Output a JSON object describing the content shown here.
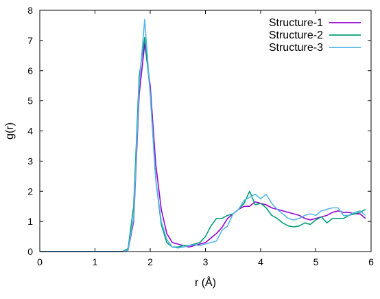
{
  "chart_data": {
    "type": "line",
    "title": "",
    "xlabel": "r (Å)",
    "ylabel": "g(r)",
    "xlim": [
      0,
      6
    ],
    "ylim": [
      0,
      8
    ],
    "xticks": [
      "0",
      "1",
      "2",
      "3",
      "4",
      "5",
      "6"
    ],
    "yticks": [
      "0",
      "1",
      "2",
      "3",
      "4",
      "5",
      "6",
      "7",
      "8"
    ],
    "grid": false,
    "legend_position": "top-right",
    "series": [
      {
        "name": "Structure-1",
        "color": "#9400d3",
        "points": [
          [
            0,
            0
          ],
          [
            1.5,
            0
          ],
          [
            1.6,
            0.05
          ],
          [
            1.7,
            1.0
          ],
          [
            1.8,
            5.2
          ],
          [
            1.9,
            6.9
          ],
          [
            2.0,
            5.5
          ],
          [
            2.1,
            2.9
          ],
          [
            2.2,
            1.4
          ],
          [
            2.3,
            0.6
          ],
          [
            2.4,
            0.3
          ],
          [
            2.5,
            0.25
          ],
          [
            2.6,
            0.2
          ],
          [
            2.7,
            0.15
          ],
          [
            2.8,
            0.2
          ],
          [
            2.9,
            0.25
          ],
          [
            3.0,
            0.3
          ],
          [
            3.1,
            0.45
          ],
          [
            3.2,
            0.6
          ],
          [
            3.3,
            0.8
          ],
          [
            3.4,
            1.1
          ],
          [
            3.5,
            1.25
          ],
          [
            3.6,
            1.4
          ],
          [
            3.7,
            1.5
          ],
          [
            3.8,
            1.5
          ],
          [
            3.9,
            1.65
          ],
          [
            4.0,
            1.6
          ],
          [
            4.1,
            1.55
          ],
          [
            4.2,
            1.45
          ],
          [
            4.3,
            1.4
          ],
          [
            4.4,
            1.35
          ],
          [
            4.5,
            1.3
          ],
          [
            4.6,
            1.25
          ],
          [
            4.7,
            1.2
          ],
          [
            4.8,
            1.1
          ],
          [
            4.9,
            1.05
          ],
          [
            5.0,
            1.1
          ],
          [
            5.1,
            1.15
          ],
          [
            5.2,
            1.2
          ],
          [
            5.3,
            1.3
          ],
          [
            5.4,
            1.35
          ],
          [
            5.5,
            1.3
          ],
          [
            5.6,
            1.3
          ],
          [
            5.7,
            1.25
          ],
          [
            5.8,
            1.25
          ],
          [
            5.9,
            1.1
          ]
        ]
      },
      {
        "name": "Structure-2",
        "color": "#009e73",
        "points": [
          [
            0,
            0
          ],
          [
            1.5,
            0
          ],
          [
            1.6,
            0.1
          ],
          [
            1.7,
            1.5
          ],
          [
            1.8,
            5.8
          ],
          [
            1.9,
            7.1
          ],
          [
            2.0,
            5.3
          ],
          [
            2.1,
            2.4
          ],
          [
            2.2,
            0.9
          ],
          [
            2.3,
            0.3
          ],
          [
            2.4,
            0.15
          ],
          [
            2.5,
            0.15
          ],
          [
            2.6,
            0.2
          ],
          [
            2.7,
            0.2
          ],
          [
            2.8,
            0.25
          ],
          [
            2.9,
            0.3
          ],
          [
            3.0,
            0.5
          ],
          [
            3.1,
            0.85
          ],
          [
            3.2,
            1.1
          ],
          [
            3.3,
            1.1
          ],
          [
            3.4,
            1.2
          ],
          [
            3.5,
            1.25
          ],
          [
            3.6,
            1.4
          ],
          [
            3.7,
            1.6
          ],
          [
            3.8,
            2.0
          ],
          [
            3.9,
            1.55
          ],
          [
            4.0,
            1.6
          ],
          [
            4.1,
            1.45
          ],
          [
            4.2,
            1.2
          ],
          [
            4.3,
            1.1
          ],
          [
            4.4,
            0.95
          ],
          [
            4.5,
            0.85
          ],
          [
            4.6,
            0.82
          ],
          [
            4.7,
            0.85
          ],
          [
            4.8,
            0.95
          ],
          [
            4.9,
            0.9
          ],
          [
            5.0,
            1.05
          ],
          [
            5.1,
            1.15
          ],
          [
            5.2,
            0.95
          ],
          [
            5.3,
            1.1
          ],
          [
            5.4,
            1.1
          ],
          [
            5.5,
            1.1
          ],
          [
            5.6,
            1.2
          ],
          [
            5.7,
            1.25
          ],
          [
            5.8,
            1.3
          ],
          [
            5.9,
            1.4
          ]
        ]
      },
      {
        "name": "Structure-3",
        "color": "#56b4e9",
        "points": [
          [
            0,
            0
          ],
          [
            1.5,
            0
          ],
          [
            1.6,
            0.05
          ],
          [
            1.7,
            1.1
          ],
          [
            1.8,
            5.5
          ],
          [
            1.9,
            7.7
          ],
          [
            2.0,
            5.2
          ],
          [
            2.1,
            2.4
          ],
          [
            2.2,
            1.0
          ],
          [
            2.3,
            0.4
          ],
          [
            2.4,
            0.15
          ],
          [
            2.5,
            0.12
          ],
          [
            2.6,
            0.15
          ],
          [
            2.7,
            0.2
          ],
          [
            2.8,
            0.22
          ],
          [
            2.9,
            0.2
          ],
          [
            3.0,
            0.25
          ],
          [
            3.1,
            0.3
          ],
          [
            3.2,
            0.35
          ],
          [
            3.3,
            0.7
          ],
          [
            3.4,
            0.85
          ],
          [
            3.5,
            1.25
          ],
          [
            3.6,
            1.4
          ],
          [
            3.7,
            1.7
          ],
          [
            3.8,
            1.8
          ],
          [
            3.9,
            1.9
          ],
          [
            4.0,
            1.75
          ],
          [
            4.1,
            1.9
          ],
          [
            4.2,
            1.6
          ],
          [
            4.3,
            1.4
          ],
          [
            4.4,
            1.25
          ],
          [
            4.5,
            1.1
          ],
          [
            4.6,
            1.05
          ],
          [
            4.7,
            1.1
          ],
          [
            4.8,
            1.2
          ],
          [
            4.9,
            1.25
          ],
          [
            5.0,
            1.2
          ],
          [
            5.1,
            1.35
          ],
          [
            5.2,
            1.4
          ],
          [
            5.3,
            1.45
          ],
          [
            5.4,
            1.45
          ],
          [
            5.5,
            1.2
          ],
          [
            5.6,
            1.2
          ],
          [
            5.7,
            1.3
          ],
          [
            5.8,
            1.35
          ],
          [
            5.9,
            1.2
          ]
        ]
      }
    ]
  }
}
